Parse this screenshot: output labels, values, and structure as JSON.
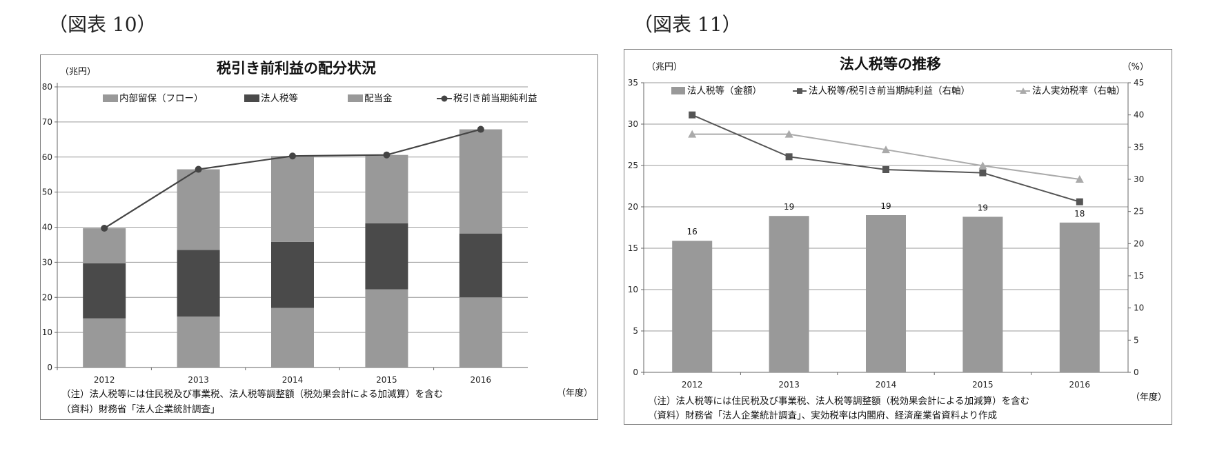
{
  "figure_labels": [
    "（図表 10）",
    "（図表 11）"
  ],
  "chart_data": [
    {
      "type": "bar",
      "stacked": true,
      "title": "税引き前利益の配分状況",
      "ylabel": "（兆円）",
      "xlabel": "（年度）",
      "ylim": [
        0,
        80
      ],
      "yticks": [
        0,
        10,
        20,
        30,
        40,
        50,
        60,
        70,
        80
      ],
      "grid": true,
      "legend_position": "top",
      "categories": [
        "2012",
        "2013",
        "2014",
        "2015",
        "2016"
      ],
      "series": [
        {
          "name": "内部留保（フロー）",
          "kind": "bar",
          "color": "#999999",
          "values": [
            10.0,
            23.0,
            24.5,
            19.5,
            29.7
          ]
        },
        {
          "name": "法人税等",
          "kind": "bar",
          "color": "#4a4a4a",
          "values": [
            15.7,
            19.0,
            18.8,
            18.8,
            18.2
          ]
        },
        {
          "name": "配当金",
          "kind": "bar",
          "color": "#999999",
          "values": [
            14.0,
            14.5,
            17.0,
            22.3,
            20.0
          ]
        },
        {
          "name": "税引き前当期純利益",
          "kind": "line",
          "color": "#444444",
          "values": [
            39.7,
            56.5,
            60.3,
            60.6,
            67.9
          ]
        }
      ],
      "notes": [
        "（注）法人税等には住民税及び事業税、法人税等調整額（税効果会計による加減算）を含む",
        "（資料）財務省「法人企業統計調査」"
      ]
    },
    {
      "type": "bar",
      "title": "法人税等の推移",
      "ylabel": "（兆円）",
      "y2label": "（%）",
      "xlabel": "（年度）",
      "ylim": [
        0,
        35
      ],
      "yticks": [
        0,
        5,
        10,
        15,
        20,
        25,
        30,
        35
      ],
      "y2lim": [
        0,
        45
      ],
      "y2ticks": [
        0,
        5,
        10,
        15,
        20,
        25,
        30,
        35,
        40,
        45
      ],
      "grid": true,
      "legend_position": "top",
      "categories": [
        "2012",
        "2013",
        "2014",
        "2015",
        "2016"
      ],
      "series": [
        {
          "name": "法人税等（金額）",
          "kind": "bar",
          "axis": "left",
          "color": "#999999",
          "values": [
            15.9,
            18.9,
            19.0,
            18.8,
            18.1
          ],
          "labels": [
            "16",
            "19",
            "19",
            "19",
            "18"
          ]
        },
        {
          "name": "法人税等/税引き前当期純利益（右軸）",
          "kind": "line",
          "axis": "right",
          "marker": "square",
          "color": "#555555",
          "values": [
            40.0,
            33.5,
            31.5,
            31.0,
            26.5
          ]
        },
        {
          "name": "法人実効税率（右軸）",
          "kind": "line",
          "axis": "right",
          "marker": "triangle",
          "color": "#aaaaaa",
          "values": [
            37.0,
            37.0,
            34.6,
            32.1,
            30.0
          ]
        }
      ],
      "notes": [
        "（注）法人税等には住民税及び事業税、法人税等調整額（税効果会計による加減算）を含む",
        "（資料）財務省「法人企業統計調査」、実効税率は内閣府、経済産業省資料より作成"
      ]
    }
  ]
}
